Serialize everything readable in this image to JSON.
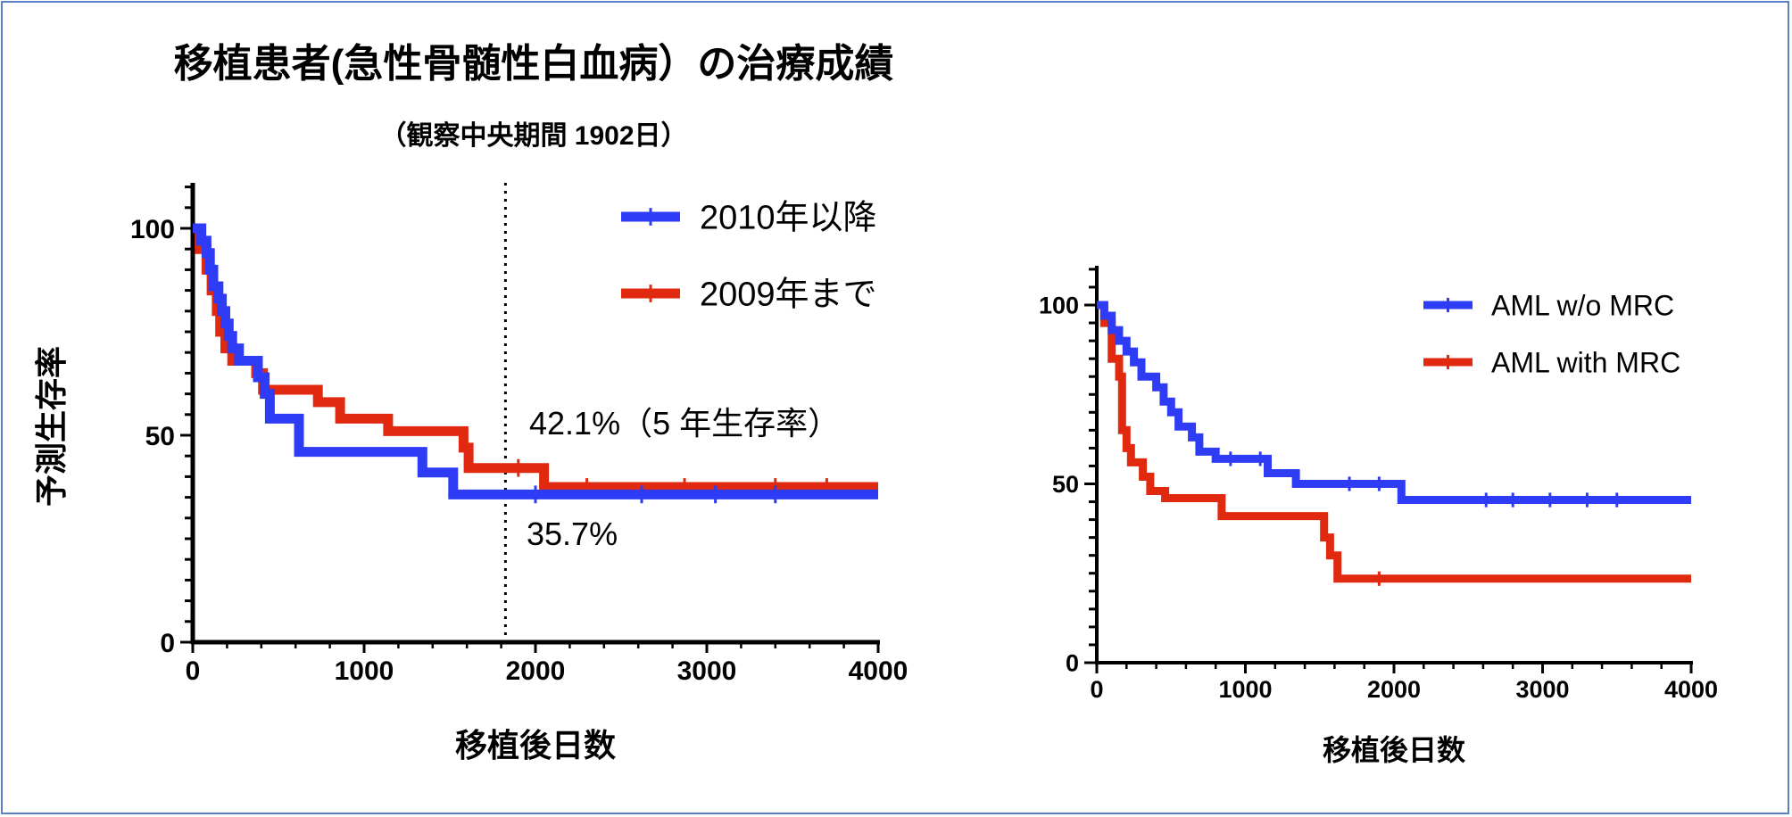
{
  "title": "移植患者(急性骨髄性白血病）の治療成績",
  "subtitle": "（観察中央期間 1902日）",
  "colors": {
    "blue": "#2f3cf5",
    "red": "#e0290f",
    "frame": "#5b7fc7"
  },
  "chart_data": [
    {
      "type": "line",
      "chart": "km-left",
      "xlabel": "移植後日数",
      "ylabel": "予測生存率",
      "xlim": [
        0,
        4000
      ],
      "ylim": [
        0,
        100
      ],
      "xticks": [
        0,
        1000,
        2000,
        3000,
        4000
      ],
      "yticks": [
        0,
        50,
        100
      ],
      "legend_position": "top-right",
      "reference_line_x": 1825,
      "annotations": [
        "42.1%（5 年生存率）",
        "35.7%"
      ],
      "series": [
        {
          "name": "2010年以降",
          "color": "blue",
          "points": [
            [
              0,
              100
            ],
            [
              50,
              100
            ],
            [
              50,
              97
            ],
            [
              80,
              97
            ],
            [
              80,
              94
            ],
            [
              100,
              94
            ],
            [
              100,
              90
            ],
            [
              120,
              90
            ],
            [
              120,
              86
            ],
            [
              150,
              86
            ],
            [
              150,
              83
            ],
            [
              170,
              83
            ],
            [
              170,
              80
            ],
            [
              190,
              80
            ],
            [
              190,
              77
            ],
            [
              210,
              77
            ],
            [
              210,
              74
            ],
            [
              230,
              74
            ],
            [
              230,
              71
            ],
            [
              270,
              71
            ],
            [
              270,
              68
            ],
            [
              380,
              68
            ],
            [
              380,
              64
            ],
            [
              420,
              64
            ],
            [
              420,
              60
            ],
            [
              450,
              60
            ],
            [
              450,
              54
            ],
            [
              620,
              54
            ],
            [
              620,
              46
            ],
            [
              1340,
              46
            ],
            [
              1340,
              41
            ],
            [
              1520,
              41
            ],
            [
              1520,
              35.7
            ],
            [
              4000,
              35.7
            ]
          ],
          "censor": [
            2000,
            2620,
            3050,
            3400
          ]
        },
        {
          "name": "2009年まで",
          "color": "red",
          "points": [
            [
              0,
              100
            ],
            [
              40,
              100
            ],
            [
              40,
              95
            ],
            [
              80,
              95
            ],
            [
              80,
              90
            ],
            [
              110,
              90
            ],
            [
              110,
              85
            ],
            [
              140,
              85
            ],
            [
              140,
              80
            ],
            [
              160,
              80
            ],
            [
              160,
              75
            ],
            [
              190,
              75
            ],
            [
              190,
              71
            ],
            [
              230,
              71
            ],
            [
              230,
              68
            ],
            [
              370,
              68
            ],
            [
              370,
              65
            ],
            [
              410,
              65
            ],
            [
              410,
              61
            ],
            [
              730,
              61
            ],
            [
              730,
              58
            ],
            [
              860,
              58
            ],
            [
              860,
              54
            ],
            [
              1140,
              54
            ],
            [
              1140,
              51
            ],
            [
              1580,
              51
            ],
            [
              1580,
              47
            ],
            [
              1610,
              47
            ],
            [
              1610,
              42.1
            ],
            [
              2050,
              42.1
            ],
            [
              2050,
              37.5
            ],
            [
              4000,
              37.5
            ]
          ],
          "censor": [
            1900,
            2300,
            2870,
            3400,
            3700
          ]
        }
      ]
    },
    {
      "type": "line",
      "chart": "km-right",
      "xlabel": "移植後日数",
      "xlim": [
        0,
        4000
      ],
      "ylim": [
        0,
        100
      ],
      "xticks": [
        0,
        1000,
        2000,
        3000,
        4000
      ],
      "yticks": [
        0,
        50,
        100
      ],
      "legend_position": "top-right",
      "series": [
        {
          "name": "AML w/o MRC",
          "color": "blue",
          "points": [
            [
              0,
              100
            ],
            [
              50,
              100
            ],
            [
              50,
              97
            ],
            [
              100,
              97
            ],
            [
              100,
              93
            ],
            [
              150,
              93
            ],
            [
              150,
              90
            ],
            [
              200,
              90
            ],
            [
              200,
              87
            ],
            [
              250,
              87
            ],
            [
              250,
              84
            ],
            [
              300,
              84
            ],
            [
              300,
              80
            ],
            [
              400,
              80
            ],
            [
              400,
              77
            ],
            [
              450,
              77
            ],
            [
              450,
              73
            ],
            [
              500,
              73
            ],
            [
              500,
              70
            ],
            [
              550,
              70
            ],
            [
              550,
              66
            ],
            [
              640,
              66
            ],
            [
              640,
              63
            ],
            [
              690,
              63
            ],
            [
              690,
              59
            ],
            [
              800,
              59
            ],
            [
              800,
              57
            ],
            [
              1150,
              57
            ],
            [
              1150,
              53
            ],
            [
              1340,
              53
            ],
            [
              1340,
              50
            ],
            [
              2050,
              50
            ],
            [
              2050,
              45.5
            ],
            [
              4000,
              45.5
            ]
          ],
          "censor": [
            900,
            1100,
            1700,
            1900,
            2620,
            2800,
            3050,
            3300,
            3500
          ]
        },
        {
          "name": "AML with MRC",
          "color": "red",
          "points": [
            [
              0,
              100
            ],
            [
              50,
              100
            ],
            [
              50,
              95
            ],
            [
              100,
              95
            ],
            [
              100,
              85
            ],
            [
              150,
              85
            ],
            [
              150,
              80
            ],
            [
              170,
              80
            ],
            [
              170,
              65
            ],
            [
              200,
              65
            ],
            [
              200,
              60
            ],
            [
              230,
              60
            ],
            [
              230,
              56
            ],
            [
              310,
              56
            ],
            [
              310,
              52
            ],
            [
              360,
              52
            ],
            [
              360,
              48
            ],
            [
              460,
              48
            ],
            [
              460,
              46
            ],
            [
              840,
              46
            ],
            [
              840,
              41
            ],
            [
              1530,
              41
            ],
            [
              1530,
              35
            ],
            [
              1570,
              35
            ],
            [
              1570,
              30
            ],
            [
              1620,
              30
            ],
            [
              1620,
              23.5
            ],
            [
              4000,
              23.5
            ]
          ],
          "censor": [
            1900
          ]
        }
      ]
    }
  ]
}
